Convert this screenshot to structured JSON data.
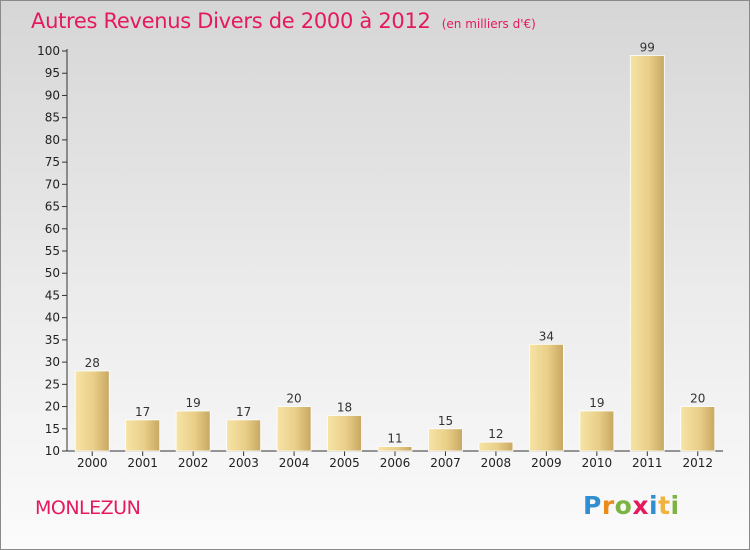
{
  "chart_data": {
    "type": "bar",
    "title": "Autres Revenus Divers de 2000 à 2012",
    "subtitle": "(en milliers d'€)",
    "categories": [
      "2000",
      "2001",
      "2002",
      "2003",
      "2004",
      "2005",
      "2006",
      "2007",
      "2008",
      "2009",
      "2010",
      "2011",
      "2012"
    ],
    "values": [
      28,
      17,
      19,
      17,
      20,
      18,
      11,
      15,
      12,
      34,
      19,
      99,
      20
    ],
    "data_labels": [
      "28",
      "17",
      "19",
      "17",
      "20",
      "18",
      "11",
      "15",
      "12",
      "34",
      "19",
      "99",
      "20"
    ],
    "ylim": [
      10,
      100
    ],
    "yticks": [
      "10",
      "15",
      "20",
      "25",
      "30",
      "35",
      "40",
      "45",
      "50",
      "55",
      "60",
      "65",
      "70",
      "75",
      "80",
      "85",
      "90",
      "95",
      "100"
    ],
    "xlabel": "",
    "ylabel": "",
    "grid": false,
    "legend": "none",
    "bar_color": "#e8cc82",
    "title_color": "#e5195c"
  },
  "commune": "MONLEZUN",
  "brand": {
    "letters": [
      "P",
      "r",
      "o",
      "x",
      "i",
      "t",
      "i"
    ],
    "colors": [
      "#2f8fd0",
      "#e98a1c",
      "#7cb342",
      "#e5195c",
      "#2f8fd0",
      "#f2b33d",
      "#7cb342"
    ]
  }
}
